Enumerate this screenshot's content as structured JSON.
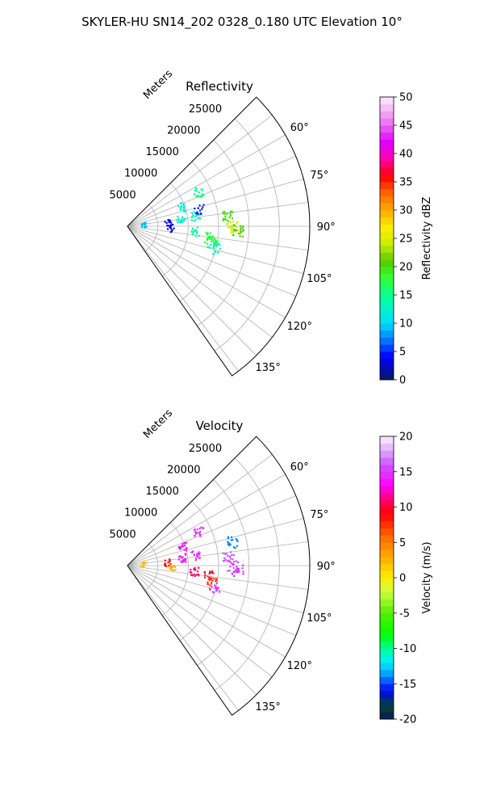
{
  "figure": {
    "suptitle": "SKYLER-HU  SN14_202  0328_0.180 UTC Elevation 10°"
  },
  "chart_data": [
    {
      "type": "polar-ppi",
      "title": "Reflectivity",
      "range_label": "Meters",
      "range_ticks": [
        5000,
        10000,
        15000,
        20000,
        25000
      ],
      "range_max": 30000,
      "azimuth_min_deg": 45,
      "azimuth_max_deg": 145,
      "azimuth_ticks_deg": [
        60,
        75,
        90,
        105,
        120,
        135
      ],
      "grid": true,
      "colorbar": {
        "label": "Reflectivity dBZ",
        "min": 0,
        "max": 50,
        "ticks": [
          0,
          5,
          10,
          15,
          20,
          25,
          30,
          35,
          40,
          45,
          50
        ]
      },
      "echo_clusters": [
        {
          "azimuth_deg": 81,
          "range_m": 2600,
          "value": 9
        },
        {
          "azimuth_deg": 84,
          "range_m": 6500,
          "value": 4
        },
        {
          "azimuth_deg": 92,
          "range_m": 7100,
          "value": 3
        },
        {
          "azimuth_deg": 81,
          "range_m": 8800,
          "value": 12
        },
        {
          "azimuth_deg": 70,
          "range_m": 9500,
          "value": 12
        },
        {
          "azimuth_deg": 81,
          "range_m": 11200,
          "value": 13
        },
        {
          "azimuth_deg": 94,
          "range_m": 11000,
          "value": 14
        },
        {
          "azimuth_deg": 76,
          "range_m": 12000,
          "value": 5
        },
        {
          "azimuth_deg": 64,
          "range_m": 13000,
          "value": 15
        },
        {
          "azimuth_deg": 97,
          "range_m": 13500,
          "value": 18
        },
        {
          "azimuth_deg": 100,
          "range_m": 14000,
          "value": 17
        },
        {
          "azimuth_deg": 84,
          "range_m": 16600,
          "value": 20
        },
        {
          "azimuth_deg": 90,
          "range_m": 17200,
          "value": 24
        },
        {
          "azimuth_deg": 92,
          "range_m": 18000,
          "value": 21
        },
        {
          "azimuth_deg": 104,
          "range_m": 14700,
          "value": 13
        }
      ]
    },
    {
      "type": "polar-ppi",
      "title": "Velocity",
      "range_label": "Meters",
      "range_ticks": [
        5000,
        10000,
        15000,
        20000,
        25000
      ],
      "range_max": 30000,
      "azimuth_min_deg": 45,
      "azimuth_max_deg": 145,
      "azimuth_ticks_deg": [
        60,
        75,
        90,
        105,
        120,
        135
      ],
      "grid": true,
      "colorbar": {
        "label": "Velocity (m/s)",
        "min": -20,
        "max": 20,
        "ticks": [
          -20,
          -15,
          -10,
          -5,
          0,
          5,
          10,
          15,
          20
        ]
      },
      "echo_clusters": [
        {
          "azimuth_deg": 82,
          "range_m": 2500,
          "value": 2
        },
        {
          "azimuth_deg": 85,
          "range_m": 6500,
          "value": 9
        },
        {
          "azimuth_deg": 92,
          "range_m": 7200,
          "value": 3
        },
        {
          "azimuth_deg": 81,
          "range_m": 8900,
          "value": 14
        },
        {
          "azimuth_deg": 70,
          "range_m": 9500,
          "value": 14
        },
        {
          "azimuth_deg": 81,
          "range_m": 11200,
          "value": 15
        },
        {
          "azimuth_deg": 95,
          "range_m": 11000,
          "value": 11
        },
        {
          "azimuth_deg": 64,
          "range_m": 13000,
          "value": 15
        },
        {
          "azimuth_deg": 97,
          "range_m": 13500,
          "value": 10
        },
        {
          "azimuth_deg": 100,
          "range_m": 14000,
          "value": 7
        },
        {
          "azimuth_deg": 77,
          "range_m": 17500,
          "value": -14
        },
        {
          "azimuth_deg": 85,
          "range_m": 16600,
          "value": 16
        },
        {
          "azimuth_deg": 90,
          "range_m": 17200,
          "value": 16
        },
        {
          "azimuth_deg": 92,
          "range_m": 18000,
          "value": 15
        },
        {
          "azimuth_deg": 104,
          "range_m": 14700,
          "value": 15
        }
      ]
    }
  ]
}
